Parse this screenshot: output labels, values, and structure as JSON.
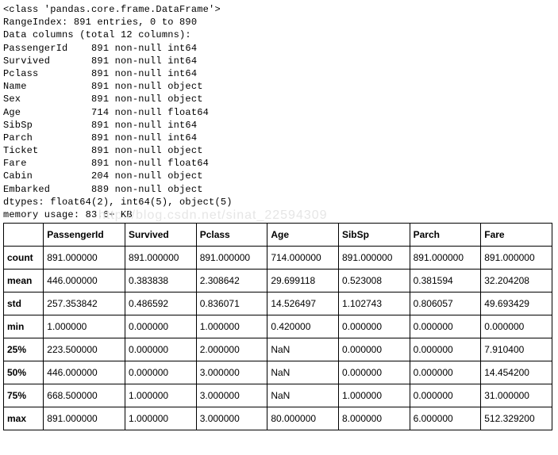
{
  "info": {
    "class_line": "<class 'pandas.core.frame.DataFrame'>",
    "range_line": "RangeIndex: 891 entries, 0 to 890",
    "columns_line": "Data columns (total 12 columns):",
    "cols": [
      {
        "name": "PassengerId",
        "nn": "891 non-null int64"
      },
      {
        "name": "Survived",
        "nn": "891 non-null int64"
      },
      {
        "name": "Pclass",
        "nn": "891 non-null int64"
      },
      {
        "name": "Name",
        "nn": "891 non-null object"
      },
      {
        "name": "Sex",
        "nn": "891 non-null object"
      },
      {
        "name": "Age",
        "nn": "714 non-null float64"
      },
      {
        "name": "SibSp",
        "nn": "891 non-null int64"
      },
      {
        "name": "Parch",
        "nn": "891 non-null int64"
      },
      {
        "name": "Ticket",
        "nn": "891 non-null object"
      },
      {
        "name": "Fare",
        "nn": "891 non-null float64"
      },
      {
        "name": "Cabin",
        "nn": "204 non-null object"
      },
      {
        "name": "Embarked",
        "nn": "889 non-null object"
      }
    ],
    "dtypes_line": "dtypes: float64(2), int64(5), object(5)",
    "memory_line": "memory usage: 83.6+ KB"
  },
  "watermark": "http://blog.csdn.net/sinat_22594309",
  "describe": {
    "headers": [
      "",
      "PassengerId",
      "Survived",
      "Pclass",
      "Age",
      "SibSp",
      "Parch",
      "Fare"
    ],
    "rows": [
      {
        "label": "count",
        "cells": [
          "891.000000",
          "891.000000",
          "891.000000",
          "714.000000",
          "891.000000",
          "891.000000",
          "891.000000"
        ]
      },
      {
        "label": "mean",
        "cells": [
          "446.000000",
          "0.383838",
          "2.308642",
          "29.699118",
          "0.523008",
          "0.381594",
          "32.204208"
        ]
      },
      {
        "label": "std",
        "cells": [
          "257.353842",
          "0.486592",
          "0.836071",
          "14.526497",
          "1.102743",
          "0.806057",
          "49.693429"
        ]
      },
      {
        "label": "min",
        "cells": [
          "1.000000",
          "0.000000",
          "1.000000",
          "0.420000",
          "0.000000",
          "0.000000",
          "0.000000"
        ]
      },
      {
        "label": "25%",
        "cells": [
          "223.500000",
          "0.000000",
          "2.000000",
          "NaN",
          "0.000000",
          "0.000000",
          "7.910400"
        ]
      },
      {
        "label": "50%",
        "cells": [
          "446.000000",
          "0.000000",
          "3.000000",
          "NaN",
          "0.000000",
          "0.000000",
          "14.454200"
        ]
      },
      {
        "label": "75%",
        "cells": [
          "668.500000",
          "1.000000",
          "3.000000",
          "NaN",
          "1.000000",
          "0.000000",
          "31.000000"
        ]
      },
      {
        "label": "max",
        "cells": [
          "891.000000",
          "1.000000",
          "3.000000",
          "80.000000",
          "8.000000",
          "6.000000",
          "512.329200"
        ]
      }
    ]
  }
}
